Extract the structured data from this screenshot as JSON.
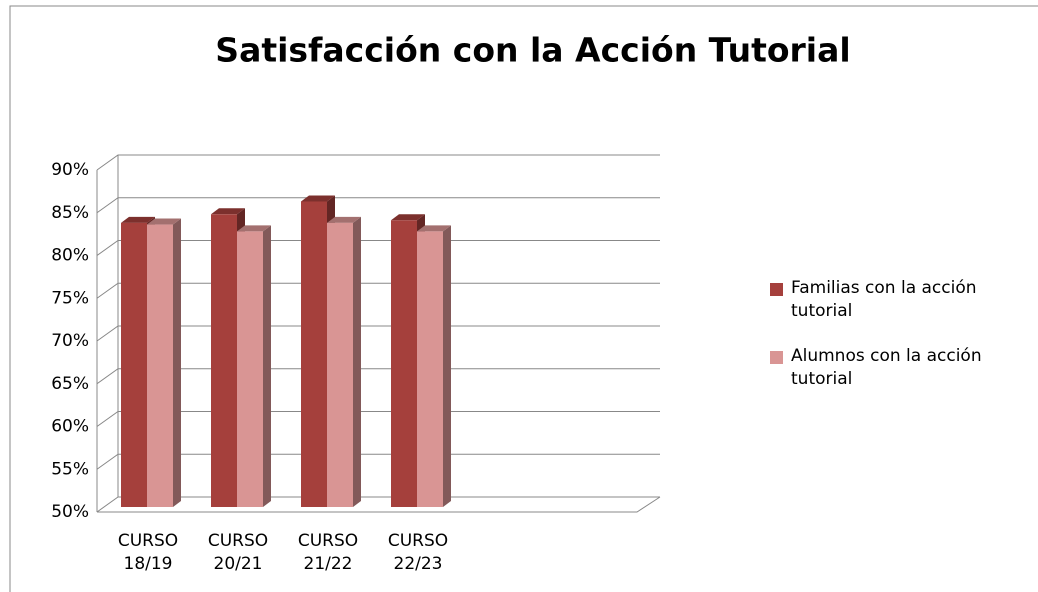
{
  "chart_data": {
    "type": "bar3d",
    "title": "Satisfacción con la Acción Tutorial",
    "categories": [
      "CURSO 18/19",
      "CURSO 20/21",
      "CURSO 21/22",
      "CURSO 22/23"
    ],
    "series": [
      {
        "name": "Familias con la acción tutorial",
        "color": "#a5403c",
        "values": [
          83,
          84,
          85.5,
          83.3
        ]
      },
      {
        "name": "Alumnos con la acción tutorial",
        "color": "#d99594",
        "values": [
          82.8,
          82,
          83,
          82
        ]
      }
    ],
    "ylim": [
      50,
      90
    ],
    "yticks": [
      {
        "value": 50,
        "label": "50%"
      },
      {
        "value": 55,
        "label": "55%"
      },
      {
        "value": 60,
        "label": "60%"
      },
      {
        "value": 65,
        "label": "65%"
      },
      {
        "value": 70,
        "label": "70%"
      },
      {
        "value": 75,
        "label": "75%"
      },
      {
        "value": 80,
        "label": "80%"
      },
      {
        "value": 85,
        "label": "85%"
      },
      {
        "value": 90,
        "label": "90%"
      }
    ],
    "grid": true,
    "legend": "right"
  }
}
